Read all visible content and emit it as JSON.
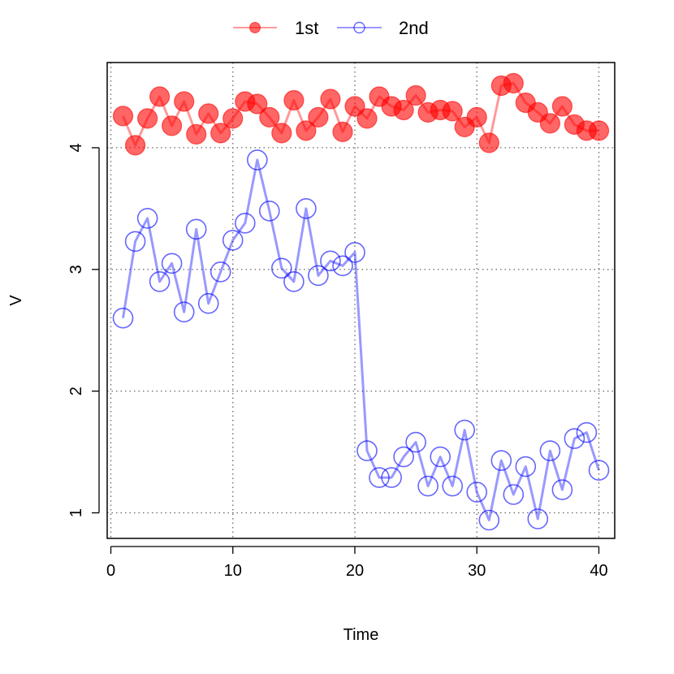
{
  "chart_data": {
    "type": "line",
    "xlabel": "Time",
    "ylabel": "V",
    "xlim": [
      -0.3,
      41.3
    ],
    "ylim": [
      0.79,
      4.7
    ],
    "xticks": [
      0,
      10,
      20,
      30,
      40
    ],
    "yticks": [
      1,
      2,
      3,
      4
    ],
    "grid": true,
    "legend_position": "top-center",
    "x": [
      1,
      2,
      3,
      4,
      5,
      6,
      7,
      8,
      9,
      10,
      11,
      12,
      13,
      14,
      15,
      16,
      17,
      18,
      19,
      20,
      21,
      22,
      23,
      24,
      25,
      26,
      27,
      28,
      29,
      30,
      31,
      32,
      33,
      34,
      35,
      36,
      37,
      38,
      39,
      40
    ],
    "series": [
      {
        "name": "1st",
        "color": "#ff0000",
        "marker": "filled-circle",
        "values": [
          4.26,
          4.02,
          4.24,
          4.42,
          4.18,
          4.38,
          4.11,
          4.28,
          4.12,
          4.24,
          4.38,
          4.36,
          4.25,
          4.12,
          4.39,
          4.14,
          4.25,
          4.4,
          4.13,
          4.34,
          4.24,
          4.42,
          4.34,
          4.31,
          4.43,
          4.29,
          4.31,
          4.3,
          4.17,
          4.25,
          4.04,
          4.51,
          4.53,
          4.37,
          4.29,
          4.2,
          4.34,
          4.19,
          4.14,
          4.14
        ]
      },
      {
        "name": "2nd",
        "color": "#0000ff",
        "marker": "open-circle",
        "values": [
          2.6,
          3.23,
          3.42,
          2.9,
          3.05,
          2.65,
          3.33,
          2.72,
          2.98,
          3.24,
          3.38,
          3.9,
          3.48,
          3.01,
          2.9,
          3.5,
          2.95,
          3.07,
          3.03,
          3.14,
          1.51,
          1.29,
          1.29,
          1.46,
          1.58,
          1.22,
          1.46,
          1.22,
          1.68,
          1.17,
          0.94,
          1.43,
          1.15,
          1.38,
          0.95,
          1.51,
          1.19,
          1.61,
          1.66,
          1.35
        ]
      }
    ]
  }
}
